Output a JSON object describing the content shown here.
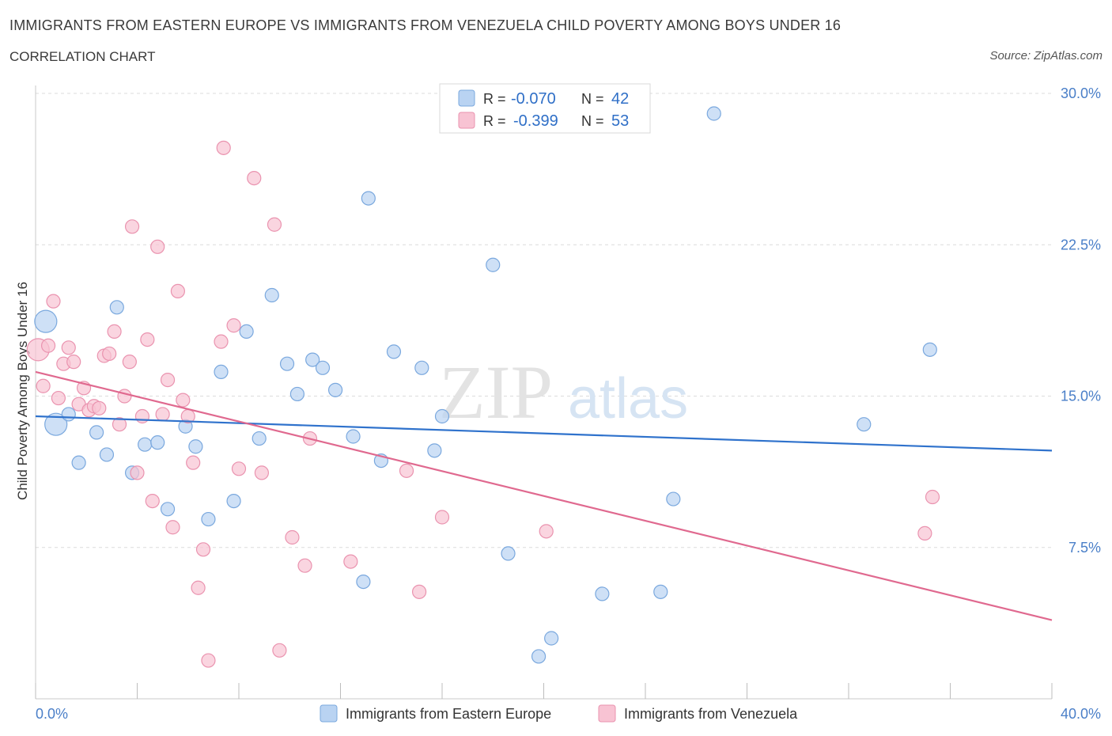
{
  "header": {
    "title": "IMMIGRANTS FROM EASTERN EUROPE VS IMMIGRANTS FROM VENEZUELA CHILD POVERTY AMONG BOYS UNDER 16",
    "subtitle": "CORRELATION CHART",
    "source": "Source: ZipAtlas.com"
  },
  "watermark": {
    "zip": "ZIP",
    "atlas": "atlas"
  },
  "colors": {
    "blue_fill": "#b9d3f2",
    "blue_stroke": "#7aa8de",
    "blue_line": "#2f72cc",
    "pink_fill": "#f8c3d3",
    "pink_stroke": "#ea93af",
    "pink_line": "#e0698f",
    "grid": "#dcdcdc",
    "tick_text": "#4a7fc8"
  },
  "chart_data": {
    "type": "scatter",
    "title": "Immigrants from Eastern Europe vs Immigrants from Venezuela Child Poverty Among Boys Under 16",
    "xlabel": "",
    "ylabel": "Child Poverty Among Boys Under 16",
    "xlim": [
      0,
      40
    ],
    "ylim": [
      0,
      30
    ],
    "x_tick_labels": [
      {
        "value": 0,
        "label": "0.0%"
      },
      {
        "value": 40,
        "label": "40.0%"
      }
    ],
    "y_tick_labels": [
      {
        "value": 7.5,
        "label": "7.5%"
      },
      {
        "value": 15,
        "label": "15.0%"
      },
      {
        "value": 22.5,
        "label": "22.5%"
      },
      {
        "value": 30,
        "label": "30.0%"
      }
    ],
    "legend": {
      "position": "top-center",
      "rows": [
        {
          "r_label": "R =",
          "r_value": "-0.070",
          "n_label": "N =",
          "n_value": "42"
        },
        {
          "r_label": "R =",
          "r_value": "-0.399",
          "n_label": "N =",
          "n_value": "53"
        }
      ]
    },
    "bottom_legend": [
      "Immigrants from Eastern Europe",
      "Immigrants from Venezuela"
    ],
    "series": [
      {
        "name": "Immigrants from Eastern Europe",
        "color": "blue",
        "trend": {
          "x": [
            0,
            40
          ],
          "y": [
            14.0,
            12.3
          ]
        },
        "points": [
          {
            "x": 0.4,
            "y": 18.7,
            "big": true
          },
          {
            "x": 0.8,
            "y": 13.6,
            "big": true
          },
          {
            "x": 1.3,
            "y": 14.1
          },
          {
            "x": 1.7,
            "y": 11.7
          },
          {
            "x": 2.4,
            "y": 13.2
          },
          {
            "x": 2.8,
            "y": 12.1
          },
          {
            "x": 3.2,
            "y": 19.4
          },
          {
            "x": 3.8,
            "y": 11.2
          },
          {
            "x": 4.3,
            "y": 12.6
          },
          {
            "x": 4.8,
            "y": 12.7
          },
          {
            "x": 5.2,
            "y": 9.4
          },
          {
            "x": 5.9,
            "y": 13.5
          },
          {
            "x": 6.3,
            "y": 12.5
          },
          {
            "x": 6.8,
            "y": 8.9
          },
          {
            "x": 7.3,
            "y": 16.2
          },
          {
            "x": 7.8,
            "y": 9.8
          },
          {
            "x": 8.3,
            "y": 18.2
          },
          {
            "x": 8.8,
            "y": 12.9
          },
          {
            "x": 9.3,
            "y": 20.0
          },
          {
            "x": 9.9,
            "y": 16.6
          },
          {
            "x": 10.3,
            "y": 15.1
          },
          {
            "x": 10.9,
            "y": 16.8
          },
          {
            "x": 11.3,
            "y": 16.4
          },
          {
            "x": 11.8,
            "y": 15.3
          },
          {
            "x": 12.5,
            "y": 13.0
          },
          {
            "x": 12.9,
            "y": 5.8
          },
          {
            "x": 13.1,
            "y": 24.8
          },
          {
            "x": 13.6,
            "y": 11.8
          },
          {
            "x": 14.1,
            "y": 17.2
          },
          {
            "x": 15.2,
            "y": 16.4
          },
          {
            "x": 15.7,
            "y": 12.3
          },
          {
            "x": 16.0,
            "y": 14.0
          },
          {
            "x": 18.0,
            "y": 21.5
          },
          {
            "x": 18.6,
            "y": 7.2
          },
          {
            "x": 19.8,
            "y": 2.1
          },
          {
            "x": 20.3,
            "y": 3.0
          },
          {
            "x": 22.3,
            "y": 5.2
          },
          {
            "x": 24.6,
            "y": 5.3
          },
          {
            "x": 25.1,
            "y": 9.9
          },
          {
            "x": 26.7,
            "y": 29.0
          },
          {
            "x": 32.6,
            "y": 13.6
          },
          {
            "x": 35.2,
            "y": 17.3
          }
        ]
      },
      {
        "name": "Immigrants from Venezuela",
        "color": "pink",
        "trend": {
          "x": [
            0,
            40
          ],
          "y": [
            16.2,
            3.9
          ]
        },
        "points": [
          {
            "x": 0.1,
            "y": 17.3,
            "big": true
          },
          {
            "x": 0.3,
            "y": 15.5
          },
          {
            "x": 0.5,
            "y": 17.5
          },
          {
            "x": 0.7,
            "y": 19.7
          },
          {
            "x": 0.9,
            "y": 14.9
          },
          {
            "x": 1.1,
            "y": 16.6
          },
          {
            "x": 1.3,
            "y": 17.4
          },
          {
            "x": 1.5,
            "y": 16.7
          },
          {
            "x": 1.7,
            "y": 14.6
          },
          {
            "x": 1.9,
            "y": 15.4
          },
          {
            "x": 2.1,
            "y": 14.3
          },
          {
            "x": 2.3,
            "y": 14.5
          },
          {
            "x": 2.5,
            "y": 14.4
          },
          {
            "x": 2.7,
            "y": 17.0
          },
          {
            "x": 2.9,
            "y": 17.1
          },
          {
            "x": 3.1,
            "y": 18.2
          },
          {
            "x": 3.3,
            "y": 13.6
          },
          {
            "x": 3.5,
            "y": 15.0
          },
          {
            "x": 3.7,
            "y": 16.7
          },
          {
            "x": 3.8,
            "y": 23.4
          },
          {
            "x": 4.0,
            "y": 11.2
          },
          {
            "x": 4.2,
            "y": 14.0
          },
          {
            "x": 4.4,
            "y": 17.8
          },
          {
            "x": 4.6,
            "y": 9.8
          },
          {
            "x": 4.8,
            "y": 22.4
          },
          {
            "x": 5.0,
            "y": 14.1
          },
          {
            "x": 5.2,
            "y": 15.8
          },
          {
            "x": 5.4,
            "y": 8.5
          },
          {
            "x": 5.6,
            "y": 20.2
          },
          {
            "x": 5.8,
            "y": 14.8
          },
          {
            "x": 6.0,
            "y": 14.0
          },
          {
            "x": 6.2,
            "y": 11.7
          },
          {
            "x": 6.4,
            "y": 5.5
          },
          {
            "x": 6.6,
            "y": 7.4
          },
          {
            "x": 6.8,
            "y": 1.9
          },
          {
            "x": 7.3,
            "y": 17.7
          },
          {
            "x": 7.4,
            "y": 27.3
          },
          {
            "x": 7.8,
            "y": 18.5
          },
          {
            "x": 8.0,
            "y": 11.4
          },
          {
            "x": 8.6,
            "y": 25.8
          },
          {
            "x": 8.9,
            "y": 11.2
          },
          {
            "x": 9.4,
            "y": 23.5
          },
          {
            "x": 9.6,
            "y": 2.4
          },
          {
            "x": 10.1,
            "y": 8.0
          },
          {
            "x": 10.6,
            "y": 6.6
          },
          {
            "x": 10.8,
            "y": 12.9
          },
          {
            "x": 12.4,
            "y": 6.8
          },
          {
            "x": 14.6,
            "y": 11.3
          },
          {
            "x": 15.1,
            "y": 5.3
          },
          {
            "x": 16.0,
            "y": 9.0
          },
          {
            "x": 20.1,
            "y": 8.3
          },
          {
            "x": 35.0,
            "y": 8.2
          },
          {
            "x": 35.3,
            "y": 10.0
          }
        ]
      }
    ]
  }
}
